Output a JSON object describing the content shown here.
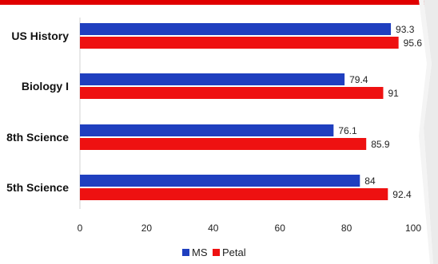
{
  "chart_data": {
    "type": "bar",
    "orientation": "horizontal",
    "categories": [
      "US History",
      "Biology I",
      "8th Science",
      "5th Science"
    ],
    "series": [
      {
        "name": "MS",
        "values": [
          93.3,
          79.4,
          76.1,
          84
        ],
        "labels": [
          "93.3",
          "79.4",
          "76.1",
          "84"
        ],
        "color": "#1f3fbf"
      },
      {
        "name": "Petal",
        "values": [
          95.6,
          91,
          85.9,
          92.4
        ],
        "labels": [
          "95.6",
          "91",
          "85.9",
          "92.4"
        ],
        "color": "#ee1111"
      }
    ],
    "xlim": [
      0,
      100
    ],
    "xticks": [
      "0",
      "20",
      "40",
      "60",
      "80",
      "100"
    ],
    "grid": false,
    "legend": "bottom",
    "title": "",
    "xlabel": "",
    "ylabel": ""
  },
  "colors": {
    "accent_bar": "#e00000"
  }
}
